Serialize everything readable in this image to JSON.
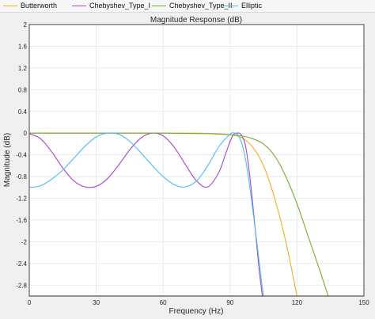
{
  "legend": {
    "items": [
      {
        "label": "Butterworth",
        "color": "#EDB120"
      },
      {
        "label": "Chebyshev_Type_I",
        "color": "#A746CF"
      },
      {
        "label": "Chebyshev_Type_II",
        "color": "#77AC30"
      },
      {
        "label": "Elliptic",
        "color": "#4DBEEE"
      }
    ]
  },
  "chart_data": {
    "type": "line",
    "title": "Magnitude Response (dB)",
    "xlabel": "Frequency (Hz)",
    "ylabel": "Magnitude (dB)",
    "xlim": [
      0,
      150
    ],
    "ylim": [
      -3,
      2
    ],
    "xticks": [
      0,
      30,
      60,
      90,
      120,
      150
    ],
    "yticks": [
      2,
      1.6,
      1.2,
      0.8,
      0.4,
      0,
      -0.4,
      -0.8,
      -1.2,
      -1.6,
      -2,
      -2.4,
      -2.8
    ],
    "grid": true,
    "legend_position": "top",
    "series": [
      {
        "name": "Butterworth",
        "color": "#EDB120",
        "x": [
          0,
          30,
          60,
          75,
          85,
          90,
          95,
          100,
          105,
          110,
          115,
          120
        ],
        "y": [
          0,
          0,
          0,
          0,
          -0.01,
          -0.03,
          -0.08,
          -0.25,
          -0.6,
          -1.2,
          -2.0,
          -3.0
        ]
      },
      {
        "name": "Chebyshev_Type_I",
        "color": "#A746CF",
        "x": [
          0,
          5,
          10,
          15,
          20,
          25,
          30,
          35,
          40,
          45,
          50,
          55,
          60,
          65,
          70,
          75,
          80,
          85,
          88,
          91,
          93,
          95,
          97,
          99,
          101,
          103,
          104.5
        ],
        "y": [
          -0.01,
          -0.1,
          -0.34,
          -0.64,
          -0.88,
          -0.99,
          -0.98,
          -0.84,
          -0.59,
          -0.31,
          -0.09,
          0,
          -0.05,
          -0.26,
          -0.58,
          -0.88,
          -0.99,
          -0.72,
          -0.38,
          -0.06,
          0.0,
          -0.03,
          -0.25,
          -0.85,
          -1.65,
          -2.5,
          -3.0
        ]
      },
      {
        "name": "Chebyshev_Type_II",
        "color": "#77AC30",
        "x": [
          0,
          30,
          60,
          80,
          90,
          95,
          100,
          105,
          110,
          115,
          120,
          125,
          130,
          134
        ],
        "y": [
          0,
          0,
          0,
          -0.01,
          -0.03,
          -0.05,
          -0.1,
          -0.2,
          -0.42,
          -0.8,
          -1.3,
          -1.9,
          -2.5,
          -3.0
        ]
      },
      {
        "name": "Elliptic",
        "color": "#4DBEEE",
        "x": [
          0,
          5,
          10,
          15,
          20,
          25,
          30,
          35,
          40,
          45,
          50,
          55,
          60,
          65,
          70,
          75,
          80,
          85,
          90,
          92,
          94,
          96,
          98,
          100,
          102,
          104,
          105
        ],
        "y": [
          -1.0,
          -0.97,
          -0.85,
          -0.68,
          -0.46,
          -0.24,
          -0.07,
          0,
          -0.02,
          -0.15,
          -0.36,
          -0.59,
          -0.8,
          -0.95,
          -0.99,
          -0.88,
          -0.6,
          -0.25,
          -0.02,
          0.0,
          -0.06,
          -0.3,
          -0.75,
          -1.35,
          -2.0,
          -2.7,
          -3.0
        ]
      }
    ]
  }
}
